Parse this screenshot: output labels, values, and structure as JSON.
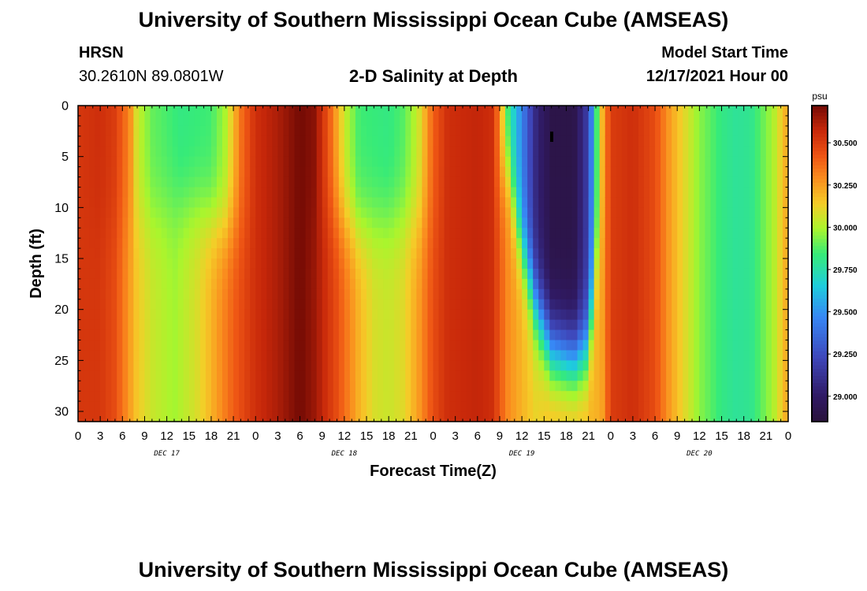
{
  "header": {
    "title": "University of Southern Mississippi Ocean Cube (AMSEAS)",
    "station": "HRSN",
    "coords": "30.2610N  89.0801W",
    "center_title": "2-D Salinity at Depth",
    "model_start_label": "Model Start Time",
    "model_start_value": "12/17/2021 Hour 00"
  },
  "footer": {
    "title": "University of Southern Mississippi Ocean Cube (AMSEAS)"
  },
  "chart_data": {
    "type": "heatmap",
    "title": "2-D Salinity at Depth",
    "xlabel": "Forecast Time(Z)",
    "ylabel": "Depth (ft)",
    "x_range_hours": [
      0,
      96
    ],
    "y_range": [
      0,
      31
    ],
    "x_tick_labels": [
      "0",
      "3",
      "6",
      "9",
      "12",
      "15",
      "18",
      "21",
      "0",
      "3",
      "6",
      "9",
      "12",
      "15",
      "18",
      "21",
      "0",
      "3",
      "6",
      "9",
      "12",
      "15",
      "18",
      "21",
      "0",
      "3",
      "6",
      "9",
      "12",
      "15",
      "18",
      "21",
      "0"
    ],
    "y_ticks": [
      0,
      5,
      10,
      15,
      20,
      25,
      30
    ],
    "day_labels": [
      {
        "label": "DEC 17",
        "hour": 12
      },
      {
        "label": "DEC 18",
        "hour": 36
      },
      {
        "label": "DEC 19",
        "hour": 60
      },
      {
        "label": "DEC 20",
        "hour": 84
      }
    ],
    "colorbar": {
      "unit": "psu",
      "min": 28.85,
      "max": 30.72,
      "ticks": [
        "30.500",
        "30.250",
        "30.000",
        "29.750",
        "29.500",
        "29.250",
        "29.000"
      ],
      "tick_values": [
        30.5,
        30.25,
        30.0,
        29.75,
        29.5,
        29.25,
        29.0
      ]
    },
    "surface_salinity_by_hour": [
      [
        0,
        30.52
      ],
      [
        3,
        30.55
      ],
      [
        5,
        30.5
      ],
      [
        7,
        30.3
      ],
      [
        8,
        30.05
      ],
      [
        10,
        29.9
      ],
      [
        14,
        29.82
      ],
      [
        18,
        29.85
      ],
      [
        20,
        30.0
      ],
      [
        22,
        30.35
      ],
      [
        24,
        30.55
      ],
      [
        27,
        30.62
      ],
      [
        30,
        30.72
      ],
      [
        32,
        30.68
      ],
      [
        34,
        30.4
      ],
      [
        36,
        30.05
      ],
      [
        38,
        29.85
      ],
      [
        42,
        29.82
      ],
      [
        44,
        29.88
      ],
      [
        46,
        30.05
      ],
      [
        48,
        30.4
      ],
      [
        50,
        30.55
      ],
      [
        54,
        30.58
      ],
      [
        56,
        30.55
      ],
      [
        57,
        30.3
      ],
      [
        58,
        29.85
      ],
      [
        60,
        29.45
      ],
      [
        62,
        29.05
      ],
      [
        64,
        28.9
      ],
      [
        67,
        28.9
      ],
      [
        69,
        29.2
      ],
      [
        70,
        29.8
      ],
      [
        71,
        30.25
      ],
      [
        72,
        30.5
      ],
      [
        75,
        30.55
      ],
      [
        78,
        30.45
      ],
      [
        80,
        30.25
      ],
      [
        82,
        30.1
      ],
      [
        84,
        29.95
      ],
      [
        87,
        29.82
      ],
      [
        89,
        29.78
      ],
      [
        91,
        29.8
      ],
      [
        94,
        30.0
      ],
      [
        96,
        30.25
      ]
    ],
    "bottom_salinity_by_hour": [
      [
        0,
        30.52
      ],
      [
        3,
        30.52
      ],
      [
        5,
        30.45
      ],
      [
        7,
        30.25
      ],
      [
        8,
        30.15
      ],
      [
        10,
        30.05
      ],
      [
        13,
        29.98
      ],
      [
        16,
        30.08
      ],
      [
        18,
        30.2
      ],
      [
        21,
        30.4
      ],
      [
        24,
        30.55
      ],
      [
        27,
        30.62
      ],
      [
        30,
        30.72
      ],
      [
        32,
        30.65
      ],
      [
        35,
        30.45
      ],
      [
        38,
        30.2
      ],
      [
        40,
        30.08
      ],
      [
        42,
        30.05
      ],
      [
        44,
        30.1
      ],
      [
        46,
        30.25
      ],
      [
        48,
        30.45
      ],
      [
        50,
        30.55
      ],
      [
        54,
        30.58
      ],
      [
        56,
        30.55
      ],
      [
        58,
        30.3
      ],
      [
        60,
        30.2
      ],
      [
        62,
        30.12
      ],
      [
        64,
        30.2
      ],
      [
        67,
        30.2
      ],
      [
        69,
        30.2
      ],
      [
        70,
        30.2
      ],
      [
        71,
        30.25
      ],
      [
        72,
        30.5
      ],
      [
        75,
        30.55
      ],
      [
        78,
        30.45
      ],
      [
        80,
        30.25
      ],
      [
        82,
        30.1
      ],
      [
        84,
        29.95
      ],
      [
        87,
        29.82
      ],
      [
        89,
        29.78
      ],
      [
        91,
        29.8
      ],
      [
        94,
        30.0
      ],
      [
        96,
        30.25
      ]
    ],
    "mixing_depth_ft_by_hour": [
      [
        0,
        12
      ],
      [
        8,
        11
      ],
      [
        12,
        10
      ],
      [
        16,
        10
      ],
      [
        20,
        12
      ],
      [
        24,
        12
      ],
      [
        34,
        11
      ],
      [
        38,
        12
      ],
      [
        44,
        11
      ],
      [
        48,
        12
      ],
      [
        56,
        10
      ],
      [
        58,
        6
      ],
      [
        60,
        14
      ],
      [
        62,
        20
      ],
      [
        64,
        24
      ],
      [
        67,
        25
      ],
      [
        69,
        24
      ],
      [
        70,
        16
      ],
      [
        71,
        12
      ],
      [
        96,
        12
      ]
    ]
  }
}
